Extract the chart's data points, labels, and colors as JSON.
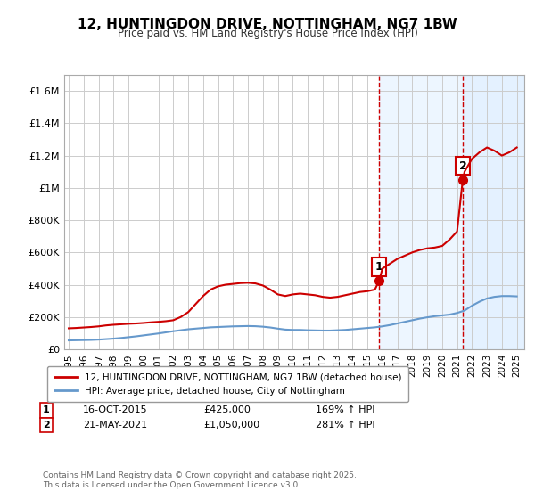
{
  "title": "12, HUNTINGDON DRIVE, NOTTINGHAM, NG7 1BW",
  "subtitle": "Price paid vs. HM Land Registry's House Price Index (HPI)",
  "red_line_label": "12, HUNTINGDON DRIVE, NOTTINGHAM, NG7 1BW (detached house)",
  "blue_line_label": "HPI: Average price, detached house, City of Nottingham",
  "sale1_date": "16-OCT-2015",
  "sale1_price": 425000,
  "sale1_pct": "169%",
  "sale2_date": "21-MAY-2021",
  "sale2_price": 1050000,
  "sale2_pct": "281%",
  "footer": "Contains HM Land Registry data © Crown copyright and database right 2025.\nThis data is licensed under the Open Government Licence v3.0.",
  "red_color": "#cc0000",
  "blue_color": "#6699cc",
  "dashed_color": "#cc0000",
  "bg_color": "#ffffff",
  "grid_color": "#cccccc",
  "shade_color": "#ddeeff",
  "ylim": [
    0,
    1700000
  ],
  "yticks": [
    0,
    200000,
    400000,
    600000,
    800000,
    1000000,
    1200000,
    1400000,
    1600000
  ],
  "ytick_labels": [
    "£0",
    "£200K",
    "£400K",
    "£600K",
    "£800K",
    "£1M",
    "£1.2M",
    "£1.4M",
    "£1.6M"
  ],
  "sale1_x": 2015.79,
  "sale2_x": 2021.38,
  "red_x": [
    1995.0,
    1995.5,
    1996.0,
    1996.5,
    1997.0,
    1997.5,
    1998.0,
    1998.5,
    1999.0,
    1999.5,
    2000.0,
    2000.5,
    2001.0,
    2001.5,
    2002.0,
    2002.5,
    2003.0,
    2003.5,
    2004.0,
    2004.5,
    2005.0,
    2005.5,
    2006.0,
    2006.5,
    2007.0,
    2007.5,
    2008.0,
    2008.5,
    2009.0,
    2009.5,
    2010.0,
    2010.5,
    2011.0,
    2011.5,
    2012.0,
    2012.5,
    2013.0,
    2013.5,
    2014.0,
    2014.5,
    2015.0,
    2015.5,
    2015.79,
    2016.0,
    2016.5,
    2017.0,
    2017.5,
    2018.0,
    2018.5,
    2019.0,
    2019.5,
    2020.0,
    2020.5,
    2021.0,
    2021.38,
    2021.5,
    2022.0,
    2022.5,
    2023.0,
    2023.5,
    2024.0,
    2024.5,
    2025.0
  ],
  "red_y": [
    130000,
    132000,
    135000,
    138000,
    142000,
    148000,
    152000,
    155000,
    158000,
    160000,
    163000,
    167000,
    170000,
    174000,
    180000,
    200000,
    230000,
    280000,
    330000,
    370000,
    390000,
    400000,
    405000,
    410000,
    412000,
    408000,
    395000,
    370000,
    340000,
    330000,
    340000,
    345000,
    340000,
    335000,
    325000,
    320000,
    325000,
    335000,
    345000,
    355000,
    360000,
    370000,
    425000,
    500000,
    530000,
    560000,
    580000,
    600000,
    615000,
    625000,
    630000,
    640000,
    680000,
    730000,
    1050000,
    1100000,
    1180000,
    1220000,
    1250000,
    1230000,
    1200000,
    1220000,
    1250000
  ],
  "blue_x": [
    1995.0,
    1995.5,
    1996.0,
    1996.5,
    1997.0,
    1997.5,
    1998.0,
    1998.5,
    1999.0,
    1999.5,
    2000.0,
    2000.5,
    2001.0,
    2001.5,
    2002.0,
    2002.5,
    2003.0,
    2003.5,
    2004.0,
    2004.5,
    2005.0,
    2005.5,
    2006.0,
    2006.5,
    2007.0,
    2007.5,
    2008.0,
    2008.5,
    2009.0,
    2009.5,
    2010.0,
    2010.5,
    2011.0,
    2011.5,
    2012.0,
    2012.5,
    2013.0,
    2013.5,
    2014.0,
    2014.5,
    2015.0,
    2015.5,
    2016.0,
    2016.5,
    2017.0,
    2017.5,
    2018.0,
    2018.5,
    2019.0,
    2019.5,
    2020.0,
    2020.5,
    2021.0,
    2021.5,
    2022.0,
    2022.5,
    2023.0,
    2023.5,
    2024.0,
    2024.5,
    2025.0
  ],
  "blue_y": [
    55000,
    56000,
    57000,
    58000,
    60000,
    63000,
    66000,
    70000,
    75000,
    80000,
    86000,
    92000,
    98000,
    105000,
    112000,
    118000,
    124000,
    128000,
    132000,
    136000,
    138000,
    140000,
    142000,
    143000,
    144000,
    143000,
    140000,
    135000,
    128000,
    122000,
    120000,
    120000,
    118000,
    117000,
    116000,
    116000,
    118000,
    120000,
    124000,
    128000,
    132000,
    136000,
    142000,
    150000,
    160000,
    170000,
    180000,
    190000,
    198000,
    205000,
    210000,
    215000,
    225000,
    240000,
    270000,
    295000,
    315000,
    325000,
    330000,
    330000,
    328000
  ]
}
